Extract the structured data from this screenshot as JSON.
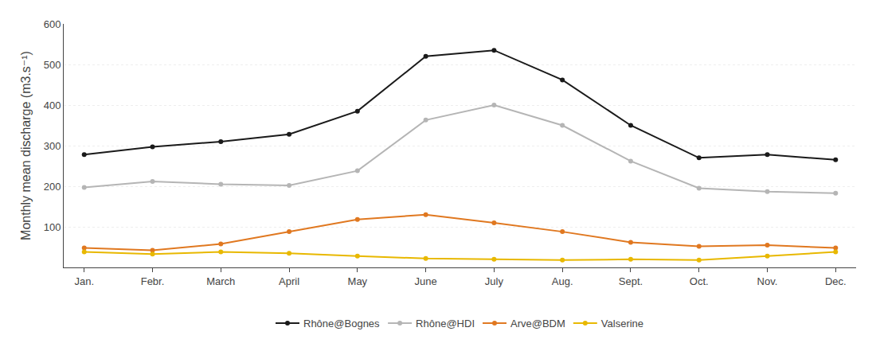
{
  "chart_data": {
    "type": "line",
    "categories": [
      "Jan.",
      "Febr.",
      "March",
      "April",
      "May",
      "June",
      "July",
      "Aug.",
      "Sept.",
      "Oct.",
      "Nov.",
      "Dec."
    ],
    "series": [
      {
        "name": "Rhône@Bognes",
        "color": "#1a1a1a",
        "values": [
          278,
          297,
          310,
          328,
          385,
          520,
          535,
          462,
          350,
          270,
          278,
          265
        ]
      },
      {
        "name": "Rhône@HDI",
        "color": "#b5b5b5",
        "values": [
          197,
          212,
          205,
          202,
          238,
          363,
          400,
          350,
          262,
          195,
          187,
          183
        ]
      },
      {
        "name": "Arve@BDM",
        "color": "#e07820",
        "values": [
          48,
          42,
          58,
          88,
          118,
          130,
          110,
          88,
          62,
          52,
          55,
          48
        ]
      },
      {
        "name": "Valserine",
        "color": "#e8b800",
        "values": [
          38,
          33,
          38,
          35,
          28,
          22,
          20,
          18,
          20,
          18,
          28,
          38
        ]
      }
    ],
    "y_label": "Monthly mean discharge (m3.s⁻¹)",
    "ylim": [
      0,
      600
    ],
    "yticks": [
      100,
      200,
      300,
      400,
      500,
      600
    ],
    "grid": true,
    "legend": "bottom",
    "marker": "circle",
    "line_style": "solid"
  }
}
